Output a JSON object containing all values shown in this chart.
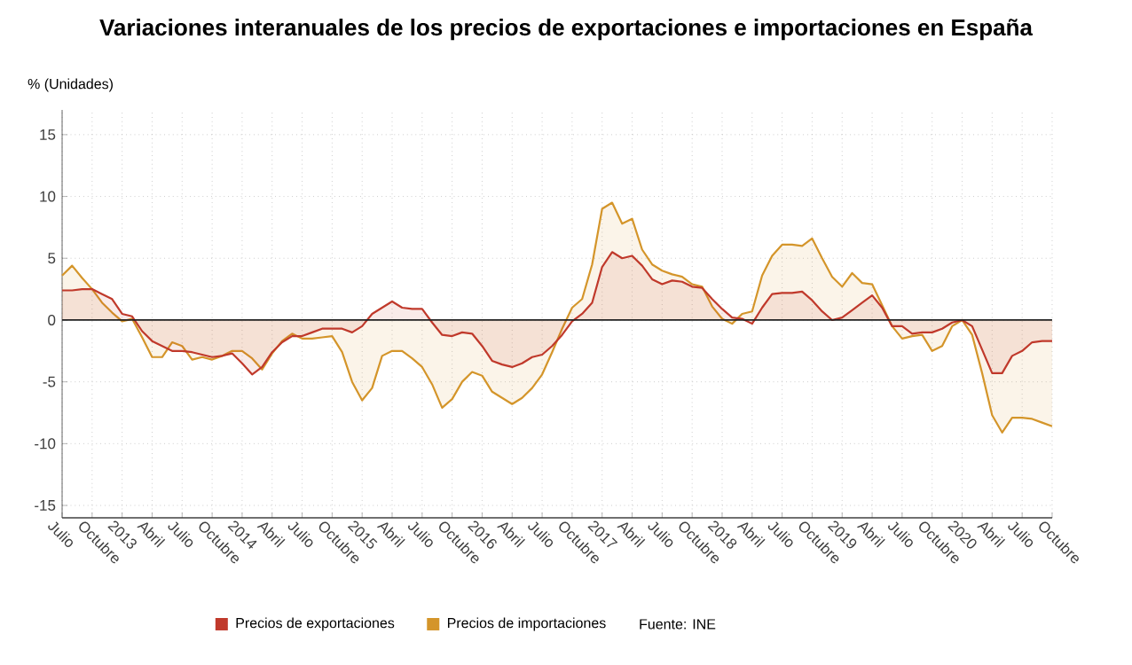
{
  "chart_data": {
    "type": "area",
    "title": "Variaciones interanuales de los precios de exportaciones e importaciones en España",
    "ylabel": "% (Unidades)",
    "x": [
      "2012-07",
      "2012-08",
      "2012-09",
      "2012-10",
      "2012-11",
      "2012-12",
      "2013-01",
      "2013-02",
      "2013-03",
      "2013-04",
      "2013-05",
      "2013-06",
      "2013-07",
      "2013-08",
      "2013-09",
      "2013-10",
      "2013-11",
      "2013-12",
      "2014-01",
      "2014-02",
      "2014-03",
      "2014-04",
      "2014-05",
      "2014-06",
      "2014-07",
      "2014-08",
      "2014-09",
      "2014-10",
      "2014-11",
      "2014-12",
      "2015-01",
      "2015-02",
      "2015-03",
      "2015-04",
      "2015-05",
      "2015-06",
      "2015-07",
      "2015-08",
      "2015-09",
      "2015-10",
      "2015-11",
      "2015-12",
      "2016-01",
      "2016-02",
      "2016-03",
      "2016-04",
      "2016-05",
      "2016-06",
      "2016-07",
      "2016-08",
      "2016-09",
      "2016-10",
      "2016-11",
      "2016-12",
      "2017-01",
      "2017-02",
      "2017-03",
      "2017-04",
      "2017-05",
      "2017-06",
      "2017-07",
      "2017-08",
      "2017-09",
      "2017-10",
      "2017-11",
      "2017-12",
      "2018-01",
      "2018-02",
      "2018-03",
      "2018-04",
      "2018-05",
      "2018-06",
      "2018-07",
      "2018-08",
      "2018-09",
      "2018-10",
      "2018-11",
      "2018-12",
      "2019-01",
      "2019-02",
      "2019-03",
      "2019-04",
      "2019-05",
      "2019-06",
      "2019-07",
      "2019-08",
      "2019-09",
      "2019-10",
      "2019-11",
      "2019-12",
      "2020-01",
      "2020-02",
      "2020-03",
      "2020-04",
      "2020-05",
      "2020-06",
      "2020-07",
      "2020-08",
      "2020-09",
      "2020-10"
    ],
    "series": [
      {
        "name": "Precios de importaciones",
        "color": "#d4952a",
        "values": [
          3.6,
          4.4,
          3.4,
          2.5,
          1.4,
          0.6,
          -0.1,
          0.1,
          -1.4,
          -3.0,
          -3.0,
          -1.8,
          -2.1,
          -3.2,
          -3.0,
          -3.2,
          -2.9,
          -2.5,
          -2.5,
          -3.1,
          -4.0,
          -2.7,
          -1.7,
          -1.1,
          -1.5,
          -1.5,
          -1.4,
          -1.3,
          -2.6,
          -5.0,
          -6.5,
          -5.5,
          -2.9,
          -2.5,
          -2.5,
          -3.1,
          -3.8,
          -5.2,
          -7.1,
          -6.4,
          -5.0,
          -4.2,
          -4.5,
          -5.8,
          -6.3,
          -6.8,
          -6.3,
          -5.5,
          -4.4,
          -2.6,
          -0.7,
          1.0,
          1.7,
          4.5,
          9.0,
          9.5,
          7.8,
          8.2,
          5.7,
          4.5,
          4.0,
          3.7,
          3.5,
          2.9,
          2.7,
          1.1,
          0.1,
          -0.3,
          0.5,
          0.7,
          3.6,
          5.2,
          6.1,
          6.1,
          6.0,
          6.6,
          5.0,
          3.5,
          2.7,
          3.8,
          3.0,
          2.9,
          1.2,
          -0.5,
          -1.5,
          -1.3,
          -1.2,
          -2.5,
          -2.1,
          -0.5,
          0.0,
          -1.2,
          -4.3,
          -7.7,
          -9.1,
          -7.9,
          -7.9,
          -8.0,
          -8.3,
          -8.6
        ]
      },
      {
        "name": "Precios de exportaciones",
        "color": "#c0392b",
        "values": [
          2.4,
          2.4,
          2.5,
          2.5,
          2.1,
          1.7,
          0.5,
          0.3,
          -0.9,
          -1.7,
          -2.1,
          -2.5,
          -2.5,
          -2.6,
          -2.8,
          -3.0,
          -2.9,
          -2.7,
          -3.5,
          -4.4,
          -3.8,
          -2.6,
          -1.8,
          -1.3,
          -1.3,
          -1.0,
          -0.7,
          -0.7,
          -0.7,
          -1.0,
          -0.5,
          0.5,
          1.0,
          1.5,
          1.0,
          0.9,
          0.9,
          -0.2,
          -1.2,
          -1.3,
          -1.0,
          -1.1,
          -2.1,
          -3.3,
          -3.6,
          -3.8,
          -3.5,
          -3.0,
          -2.8,
          -2.1,
          -1.2,
          -0.1,
          0.5,
          1.4,
          4.3,
          5.5,
          5.0,
          5.2,
          4.4,
          3.3,
          2.9,
          3.2,
          3.1,
          2.7,
          2.6,
          1.7,
          0.9,
          0.2,
          0.1,
          -0.3,
          1.0,
          2.1,
          2.2,
          2.2,
          2.3,
          1.6,
          0.7,
          0.0,
          0.2,
          0.8,
          1.4,
          2.0,
          1.0,
          -0.5,
          -0.5,
          -1.1,
          -1.0,
          -1.0,
          -0.7,
          -0.2,
          0.0,
          -0.5,
          -2.4,
          -4.3,
          -4.3,
          -2.9,
          -2.5,
          -1.8,
          -1.7,
          -1.7
        ]
      }
    ],
    "xlim": [
      "2012-07",
      "2020-10"
    ],
    "ylim": [
      -16,
      17
    ],
    "xticks": [
      {
        "value": "2012-07",
        "label": "Julio"
      },
      {
        "value": "2012-10",
        "label": "Octubre"
      },
      {
        "value": "2013-01",
        "label": "2013"
      },
      {
        "value": "2013-04",
        "label": "Abril"
      },
      {
        "value": "2013-07",
        "label": "Julio"
      },
      {
        "value": "2013-10",
        "label": "Octubre"
      },
      {
        "value": "2014-01",
        "label": "2014"
      },
      {
        "value": "2014-04",
        "label": "Abril"
      },
      {
        "value": "2014-07",
        "label": "Julio"
      },
      {
        "value": "2014-10",
        "label": "Octubre"
      },
      {
        "value": "2015-01",
        "label": "2015"
      },
      {
        "value": "2015-04",
        "label": "Abril"
      },
      {
        "value": "2015-07",
        "label": "Julio"
      },
      {
        "value": "2015-10",
        "label": "Octubre"
      },
      {
        "value": "2016-01",
        "label": "2016"
      },
      {
        "value": "2016-04",
        "label": "Abril"
      },
      {
        "value": "2016-07",
        "label": "Julio"
      },
      {
        "value": "2016-10",
        "label": "Octubre"
      },
      {
        "value": "2017-01",
        "label": "2017"
      },
      {
        "value": "2017-04",
        "label": "Abril"
      },
      {
        "value": "2017-07",
        "label": "Julio"
      },
      {
        "value": "2017-10",
        "label": "Octubre"
      },
      {
        "value": "2018-01",
        "label": "2018"
      },
      {
        "value": "2018-04",
        "label": "Abril"
      },
      {
        "value": "2018-07",
        "label": "Julio"
      },
      {
        "value": "2018-10",
        "label": "Octubre"
      },
      {
        "value": "2019-01",
        "label": "2019"
      },
      {
        "value": "2019-04",
        "label": "Abril"
      },
      {
        "value": "2019-07",
        "label": "Julio"
      },
      {
        "value": "2019-10",
        "label": "Octubre"
      },
      {
        "value": "2020-01",
        "label": "2020"
      },
      {
        "value": "2020-04",
        "label": "Abril"
      },
      {
        "value": "2020-07",
        "label": "Julio"
      },
      {
        "value": "2020-10",
        "label": "Octubre"
      }
    ],
    "yticks": [
      -15,
      -10,
      -5,
      0,
      5,
      10,
      15
    ],
    "ref_lines": [
      {
        "axis": "y",
        "value": 0,
        "color": "#222222"
      }
    ],
    "grid": true,
    "legend": "bottom",
    "annotations": [
      "Fuente: INE"
    ]
  }
}
